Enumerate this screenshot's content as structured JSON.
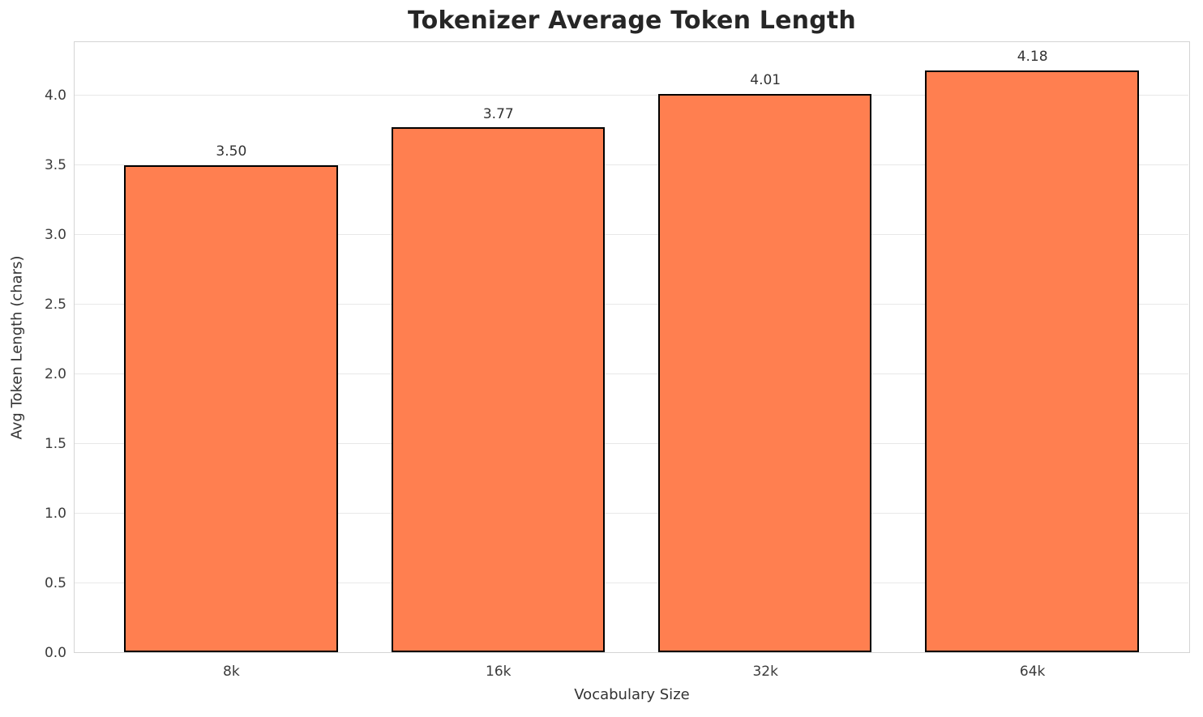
{
  "chart_data": {
    "type": "bar",
    "title": "Tokenizer Average Token Length",
    "xlabel": "Vocabulary Size",
    "ylabel": "Avg Token Length (chars)",
    "categories": [
      "8k",
      "16k",
      "32k",
      "64k"
    ],
    "values": [
      3.5,
      3.77,
      4.01,
      4.18
    ],
    "bar_labels": [
      "3.50",
      "3.77",
      "4.01",
      "4.18"
    ],
    "yticks": [
      0,
      0.5,
      1,
      1.5,
      2,
      2.5,
      3,
      3.5,
      4
    ],
    "ytick_labels": [
      "0.0",
      "0.5",
      "1.0",
      "1.5",
      "2.0",
      "2.5",
      "3.0",
      "3.5",
      "4.0"
    ],
    "ylim": [
      0,
      4.39
    ],
    "xlim": [
      -0.59,
      3.59
    ],
    "bar_width": 0.8,
    "grid": true,
    "legend_position": "none",
    "colors": {
      "bar_fill": "#FF7F50",
      "bar_edge": "#000000",
      "grid": "#E8E8E8",
      "spine": "#D4D4D4",
      "tick_text": "#3B3B3B",
      "label_text": "#333333",
      "title_text": "#262626",
      "background": "#FFFFFF"
    }
  }
}
